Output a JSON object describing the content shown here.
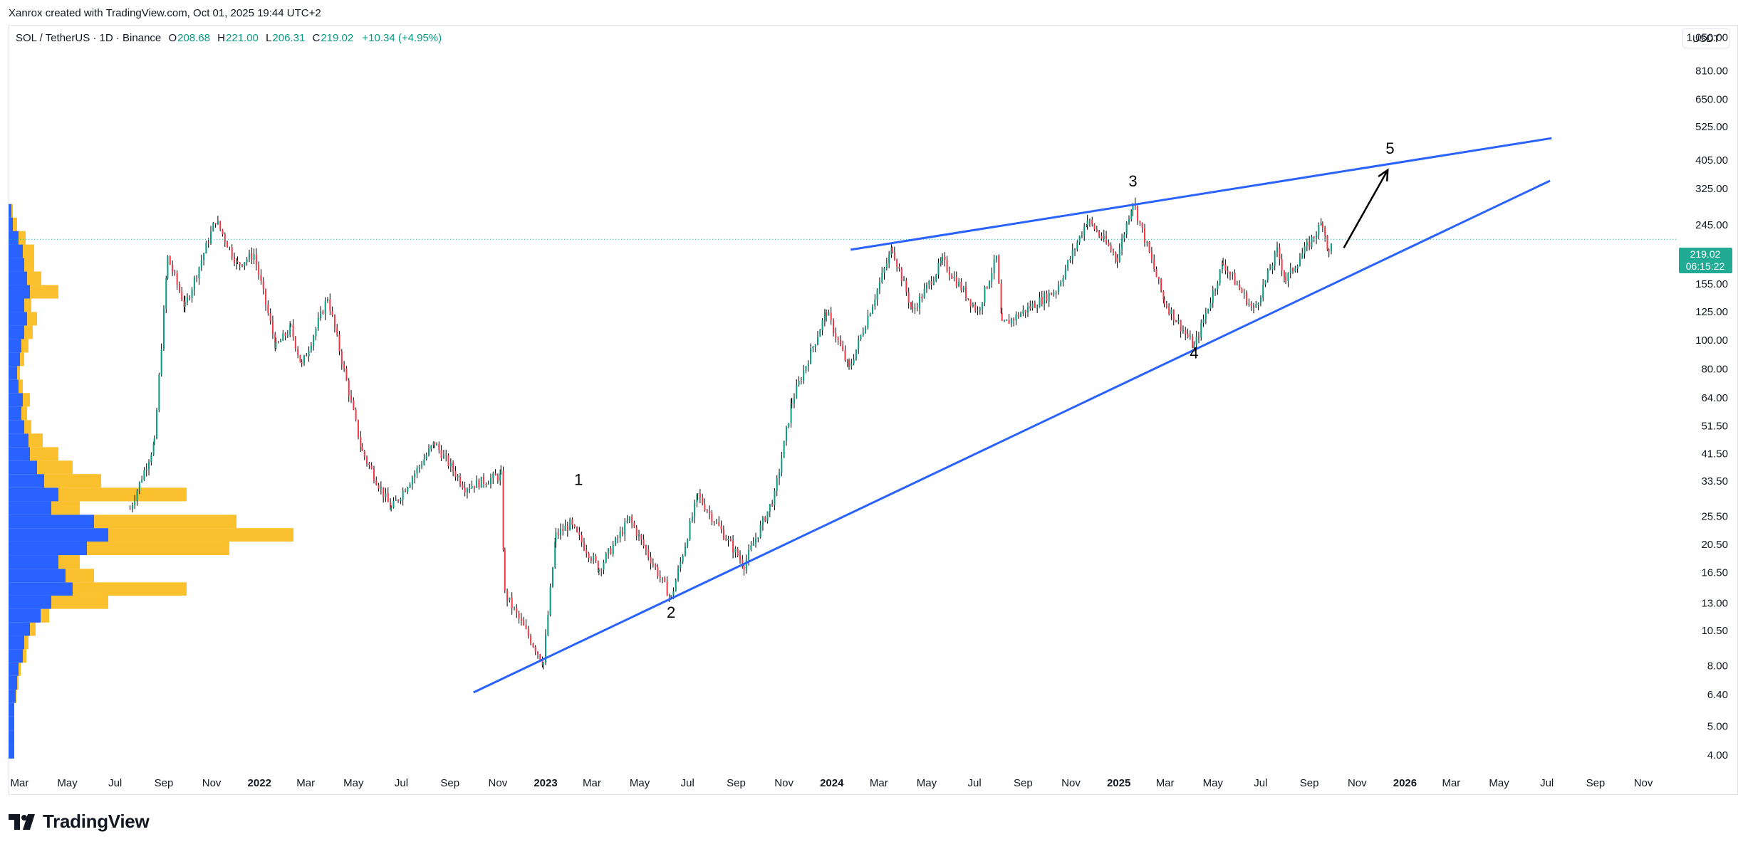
{
  "header": {
    "credit": "Xanrox created with TradingView.com, Oct 01, 2025 19:44 UTC+2"
  },
  "legend": {
    "symbol": "SOL / TetherUS · 1D · Binance",
    "open_label": "O",
    "open": "208.68",
    "high_label": "H",
    "high": "221.00",
    "low_label": "L",
    "low": "206.31",
    "close_label": "C",
    "close": "219.02",
    "change": "+10.34 (+4.95%)",
    "up_color": "#089981"
  },
  "currency_button": "USDT",
  "price_badge": {
    "price": "219.02",
    "countdown": "06:15:22",
    "color": "#22ab94"
  },
  "footer": {
    "brand": "TradingView",
    "logo_icon": "tradingview-logo-icon"
  },
  "chart_data": {
    "type": "candlestick",
    "symbol": "SOL/USDT",
    "interval": "1D",
    "yscale": "log",
    "ylim": [
      3.6,
      1150
    ],
    "y_ticks": [
      "1,050.00",
      "810.00",
      "650.00",
      "525.00",
      "405.00",
      "325.00",
      "245.00",
      "155.00",
      "125.00",
      "100.00",
      "80.00",
      "64.00",
      "51.50",
      "41.50",
      "33.50",
      "25.50",
      "20.50",
      "16.50",
      "13.00",
      "10.50",
      "8.00",
      "6.40",
      "5.00",
      "4.00"
    ],
    "x_ticks": [
      "Mar",
      "May",
      "Jul",
      "Sep",
      "Nov",
      "2022",
      "Mar",
      "May",
      "Jul",
      "Sep",
      "Nov",
      "2023",
      "Mar",
      "May",
      "Jul",
      "Sep",
      "Nov",
      "2024",
      "Mar",
      "May",
      "Jul",
      "Sep",
      "Nov",
      "2025",
      "Mar",
      "May",
      "Jul",
      "Sep",
      "Nov",
      "2026",
      "Mar",
      "May",
      "Jul",
      "Sep",
      "Nov"
    ],
    "xlim": [
      "2021-02-15",
      "2026-12-10"
    ],
    "last_price": 219.02,
    "price_path": [
      [
        "2021-07-20",
        27
      ],
      [
        "2021-08-20",
        45
      ],
      [
        "2021-09-06",
        190
      ],
      [
        "2021-09-28",
        130
      ],
      [
        "2021-11-06",
        255
      ],
      [
        "2021-12-04",
        180
      ],
      [
        "2021-12-25",
        195
      ],
      [
        "2022-01-22",
        95
      ],
      [
        "2022-02-10",
        110
      ],
      [
        "2022-02-24",
        82
      ],
      [
        "2022-03-29",
        140
      ],
      [
        "2022-05-12",
        42
      ],
      [
        "2022-06-18",
        27
      ],
      [
        "2022-08-12",
        45
      ],
      [
        "2022-09-20",
        32
      ],
      [
        "2022-11-05",
        35
      ],
      [
        "2022-11-10",
        14
      ],
      [
        "2022-12-29",
        8.2
      ],
      [
        "2023-01-14",
        22
      ],
      [
        "2023-02-01",
        24
      ],
      [
        "2023-03-10",
        17
      ],
      [
        "2023-04-18",
        25
      ],
      [
        "2023-06-10",
        13.5
      ],
      [
        "2023-07-14",
        30
      ],
      [
        "2023-09-11",
        17.5
      ],
      [
        "2023-10-20",
        30
      ],
      [
        "2023-11-11",
        62
      ],
      [
        "2023-12-25",
        125
      ],
      [
        "2024-01-23",
        80
      ],
      [
        "2024-03-18",
        205
      ],
      [
        "2024-04-13",
        125
      ],
      [
        "2024-05-21",
        185
      ],
      [
        "2024-07-05",
        125
      ],
      [
        "2024-07-29",
        190
      ],
      [
        "2024-08-05",
        112
      ],
      [
        "2024-10-13",
        148
      ],
      [
        "2024-11-22",
        255
      ],
      [
        "2024-12-30",
        190
      ],
      [
        "2025-01-19",
        295
      ],
      [
        "2025-02-28",
        135
      ],
      [
        "2025-04-07",
        95
      ],
      [
        "2025-05-14",
        182
      ],
      [
        "2025-06-22",
        126
      ],
      [
        "2025-07-22",
        200
      ],
      [
        "2025-08-02",
        160
      ],
      [
        "2025-09-18",
        250
      ],
      [
        "2025-09-26",
        195
      ],
      [
        "2025-10-01",
        219.02
      ]
    ],
    "volume_profile": {
      "up_color": "#2962ff",
      "down_color": "#fbc02d",
      "rows": [
        [
          4.1,
          8,
          0
        ],
        [
          4.6,
          8,
          0
        ],
        [
          5.1,
          8,
          0
        ],
        [
          5.7,
          8,
          0
        ],
        [
          6.3,
          10,
          1
        ],
        [
          7.0,
          12,
          2
        ],
        [
          7.8,
          14,
          3
        ],
        [
          8.6,
          20,
          5
        ],
        [
          9.6,
          22,
          6
        ],
        [
          10.6,
          30,
          8
        ],
        [
          11.8,
          45,
          12
        ],
        [
          13.1,
          60,
          80
        ],
        [
          14.5,
          90,
          160
        ],
        [
          16.1,
          80,
          40
        ],
        [
          17.9,
          70,
          30
        ],
        [
          19.9,
          110,
          200
        ],
        [
          22.1,
          140,
          260
        ],
        [
          24.5,
          120,
          200
        ],
        [
          27.2,
          60,
          40
        ],
        [
          30.2,
          70,
          180
        ],
        [
          33.6,
          50,
          80
        ],
        [
          37.3,
          40,
          50
        ],
        [
          41.4,
          30,
          40
        ],
        [
          46.0,
          28,
          20
        ],
        [
          51.1,
          22,
          10
        ],
        [
          56.7,
          18,
          8
        ],
        [
          63.0,
          20,
          10
        ],
        [
          70.0,
          14,
          6
        ],
        [
          77.7,
          12,
          4
        ],
        [
          86.3,
          16,
          6
        ],
        [
          95.8,
          18,
          10
        ],
        [
          106.4,
          22,
          12
        ],
        [
          118.2,
          26,
          14
        ],
        [
          131.2,
          22,
          10
        ],
        [
          145.7,
          30,
          40
        ],
        [
          161.8,
          26,
          20
        ],
        [
          179.7,
          22,
          14
        ],
        [
          199.6,
          20,
          16
        ],
        [
          221.6,
          14,
          10
        ],
        [
          246.1,
          6,
          6
        ],
        [
          273.3,
          4,
          2
        ]
      ]
    },
    "wave_labels": [
      {
        "label": "1",
        "date": "2023-02-12",
        "price": 32.5
      },
      {
        "label": "2",
        "date": "2023-06-10",
        "price": 11.6
      },
      {
        "label": "3",
        "date": "2025-01-19",
        "price": 330
      },
      {
        "label": "4",
        "date": "2025-04-07",
        "price": 87
      },
      {
        "label": "5",
        "date": "2025-12-13",
        "price": 425
      }
    ],
    "trendlines": [
      {
        "name": "upper",
        "color": "#2962ff",
        "from": [
          "2024-01-25",
          202
        ],
        "to": [
          "2026-07-07",
          480
        ]
      },
      {
        "name": "lower",
        "color": "#2962ff",
        "from": [
          "2022-10-01",
          6.5
        ],
        "to": [
          "2026-07-05",
          345
        ]
      }
    ],
    "arrow": {
      "color": "#000000",
      "from": [
        "2025-10-15",
        205
      ],
      "to": [
        "2025-12-10",
        375
      ]
    }
  }
}
